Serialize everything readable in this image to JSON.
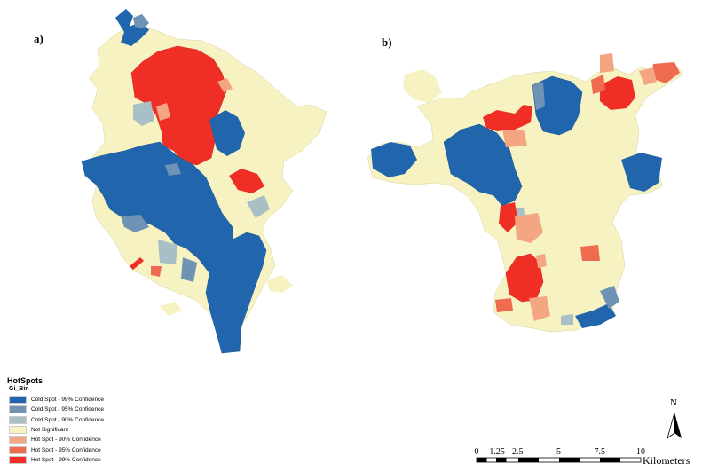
{
  "panels": [
    {
      "label": "a)"
    },
    {
      "label": "b)"
    }
  ],
  "legend": {
    "title": "HotSpots",
    "field": "Gi_Bin",
    "items": [
      {
        "label": "Cold Spot - 99% Confidence",
        "color": "#2166ac"
      },
      {
        "label": "Cold Spot - 95% Confidence",
        "color": "#6f93b5"
      },
      {
        "label": "Cold Spot - 90% Confidence",
        "color": "#a7bfc5"
      },
      {
        "label": "Not Significant",
        "color": "#f7f2c2"
      },
      {
        "label": "Hot Spot - 90% Confidence",
        "color": "#f4a582"
      },
      {
        "label": "Hot Spot - 95% Confidence",
        "color": "#ee6b50"
      },
      {
        "label": "Hot Spot - 99% Confidence",
        "color": "#ef2f25"
      }
    ]
  },
  "north_arrow": {
    "label": "N"
  },
  "scale": {
    "ticks": [
      "0",
      "1.25",
      "2.5",
      "5",
      "7.5",
      "10"
    ],
    "unit": "Kilometers"
  }
}
